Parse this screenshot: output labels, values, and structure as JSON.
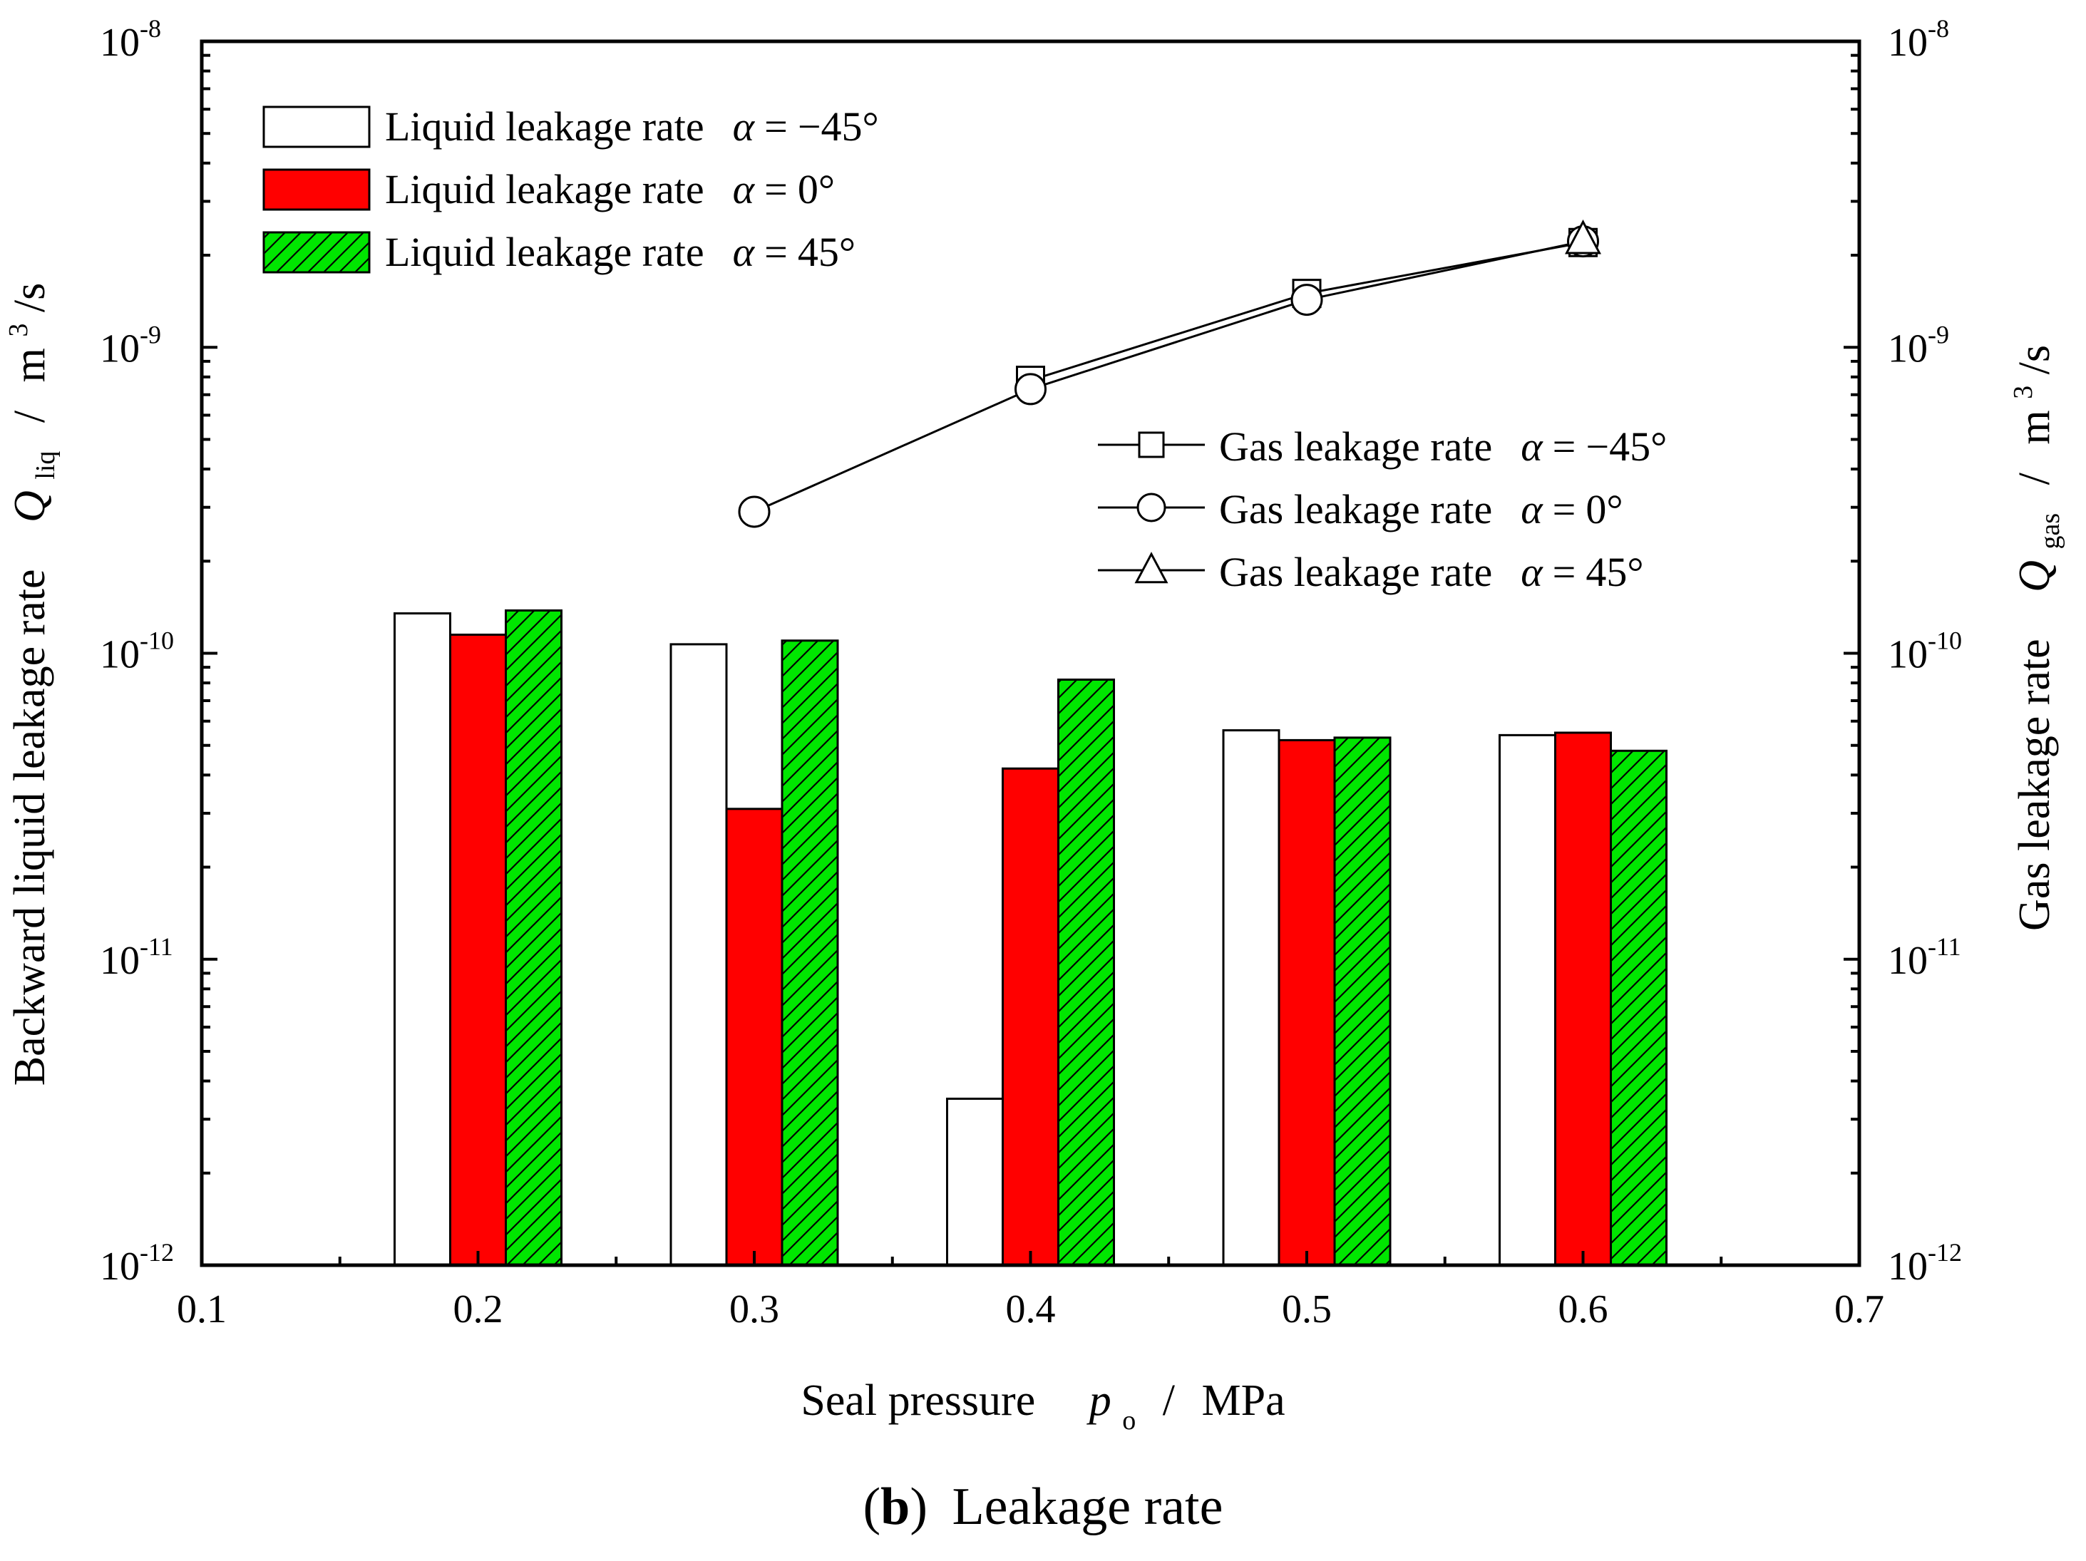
{
  "caption": {
    "bold_part": "b",
    "text": "Leakage rate",
    "open_paren": "(",
    "close_paren": ")"
  },
  "chart_data": {
    "type": "bar",
    "x": {
      "label": "Seal pressure",
      "symbol": "p",
      "subscript": "o",
      "unit": "MPa",
      "separator": "/",
      "range": [
        0.1,
        0.7
      ],
      "ticks": [
        "0.1",
        "0.2",
        "0.3",
        "0.4",
        "0.5",
        "0.6",
        "0.7"
      ]
    },
    "y_left": {
      "label": "Backward liquid leakage rate",
      "symbol": "Q",
      "subscript": "liq",
      "unit_base": "m",
      "unit_exp": "3",
      "unit_tail": "/s",
      "separator": "/",
      "scale": "log",
      "range": [
        1e-12,
        1e-08
      ],
      "ticks": [
        {
          "base": "10",
          "exp": "-12"
        },
        {
          "base": "10",
          "exp": "-11"
        },
        {
          "base": "10",
          "exp": "-10"
        },
        {
          "base": "10",
          "exp": "-9"
        },
        {
          "base": "10",
          "exp": "-8"
        }
      ]
    },
    "y_right": {
      "label": "Gas leakage rate",
      "symbol": "Q",
      "subscript": "gas",
      "unit_base": "m",
      "unit_exp": "3",
      "unit_tail": "/s",
      "separator": "/",
      "scale": "log",
      "range": [
        1e-12,
        1e-08
      ],
      "ticks": [
        {
          "base": "10",
          "exp": "-12"
        },
        {
          "base": "10",
          "exp": "-11"
        },
        {
          "base": "10",
          "exp": "-10"
        },
        {
          "base": "10",
          "exp": "-9"
        },
        {
          "base": "10",
          "exp": "-8"
        }
      ]
    },
    "categories": [
      0.2,
      0.3,
      0.4,
      0.5,
      0.6
    ],
    "bar_series": [
      {
        "name": "Liquid leakage rate",
        "alpha_symbol": "α",
        "eq": "=",
        "alpha_value": "−45°",
        "fill": "#ffffff",
        "pattern": "none",
        "values": [
          1.35e-10,
          1.07e-10,
          3.5e-12,
          5.6e-11,
          5.4e-11
        ]
      },
      {
        "name": "Liquid leakage rate",
        "alpha_symbol": "α",
        "eq": "=",
        "alpha_value": "0°",
        "fill": "#ff0000",
        "pattern": "none",
        "values": [
          1.15e-10,
          3.1e-11,
          4.2e-11,
          5.2e-11,
          5.5e-11
        ]
      },
      {
        "name": "Liquid leakage rate",
        "alpha_symbol": "α",
        "eq": "=",
        "alpha_value": "45°",
        "fill": "#00e600",
        "pattern": "hatch",
        "values": [
          1.38e-10,
          1.1e-10,
          8.2e-11,
          5.3e-11,
          4.8e-11
        ]
      }
    ],
    "line_series": [
      {
        "name": "Gas leakage rate",
        "alpha_symbol": "α",
        "eq": "=",
        "alpha_value": "−45°",
        "marker": "square",
        "x": [
          0.4,
          0.5,
          0.6
        ],
        "values": [
          7.8e-10,
          1.5e-09,
          2.2e-09
        ]
      },
      {
        "name": "Gas leakage rate",
        "alpha_symbol": "α",
        "eq": "=",
        "alpha_value": "0°",
        "marker": "circle",
        "x": [
          0.3,
          0.4,
          0.5,
          0.6
        ],
        "values": [
          2.9e-10,
          7.3e-10,
          1.43e-09,
          2.22e-09
        ]
      },
      {
        "name": "Gas leakage rate",
        "alpha_symbol": "α",
        "eq": "=",
        "alpha_value": "45°",
        "marker": "triangle",
        "x": [
          0.6
        ],
        "values": [
          2.25e-09
        ]
      }
    ],
    "legend_placement": [
      "top-left (bars)",
      "center-right (lines)"
    ],
    "colors": {
      "axis": "#000000",
      "bar_outline": "#000000"
    }
  }
}
